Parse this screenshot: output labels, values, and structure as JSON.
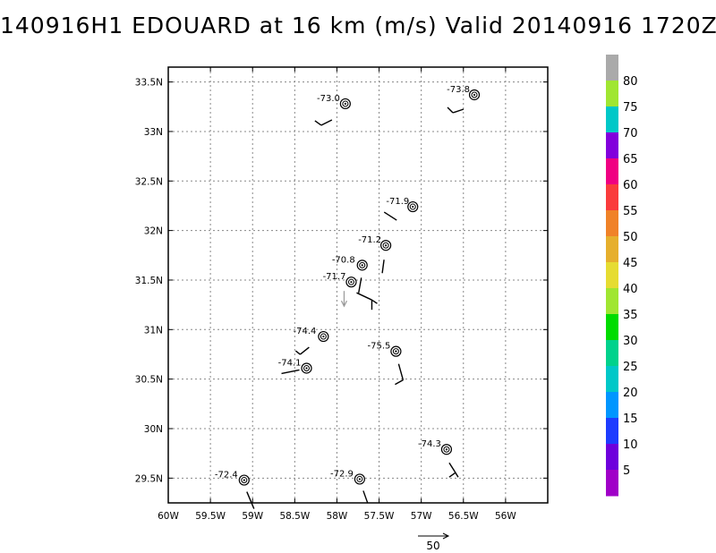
{
  "chart_data": {
    "type": "scatter",
    "title": "140916H1 EDOUARD at 16 km (m/s) Valid 20140916 1720Z",
    "xlim": [
      -60.0,
      -55.5
    ],
    "ylim": [
      29.25,
      33.65
    ],
    "x_ticks": [
      -60.0,
      -59.5,
      -59.0,
      -58.5,
      -58.0,
      -57.5,
      -57.0,
      -56.5,
      -56.0
    ],
    "x_tick_labels": [
      "60W",
      "59.5W",
      "59W",
      "58.5W",
      "58W",
      "57.5W",
      "57W",
      "56.5W",
      "56W"
    ],
    "y_ticks": [
      29.5,
      30.0,
      30.5,
      31.0,
      31.5,
      32.0,
      32.5,
      33.0,
      33.5
    ],
    "y_tick_labels": [
      "29.5N",
      "30N",
      "30.5N",
      "31N",
      "31.5N",
      "32N",
      "32.5N",
      "33N",
      "33.5N"
    ],
    "grid": true,
    "observations": [
      {
        "label": "-73.0",
        "lon": -57.9,
        "lat": 33.28
      },
      {
        "label": "-73.8",
        "lon": -56.37,
        "lat": 33.37
      },
      {
        "label": "-71.9",
        "lon": -57.1,
        "lat": 32.24
      },
      {
        "label": "-71.2",
        "lon": -57.42,
        "lat": 31.85
      },
      {
        "label": "-70.8",
        "lon": -57.7,
        "lat": 31.65
      },
      {
        "label": "-71.7",
        "lon": -57.83,
        "lat": 31.48
      },
      {
        "label": "-74.4",
        "lon": -58.16,
        "lat": 30.93
      },
      {
        "label": "-75.5",
        "lon": -57.3,
        "lat": 30.78
      },
      {
        "label": "-74.1",
        "lon": -58.36,
        "lat": 30.61
      },
      {
        "label": "-74.3",
        "lon": -56.7,
        "lat": 29.79
      },
      {
        "label": "-72.4",
        "lon": -59.1,
        "lat": 29.48
      },
      {
        "label": "-72.9",
        "lon": -57.73,
        "lat": 29.49
      }
    ],
    "reference_vector": {
      "label": "50"
    },
    "colorbar": {
      "labels": [
        "5",
        "10",
        "15",
        "20",
        "25",
        "30",
        "35",
        "40",
        "45",
        "50",
        "55",
        "60",
        "65",
        "70",
        "75",
        "80"
      ],
      "colors": [
        "#a000c8",
        "#6e00dc",
        "#1e3cff",
        "#0096ff",
        "#00c8c8",
        "#00d28c",
        "#00dc00",
        "#a0e632",
        "#e6dc32",
        "#e6af2d",
        "#f08228",
        "#fa3c3c",
        "#f00082",
        "#8200dc",
        "#00c8c8",
        "#a0e632",
        "#aaaaaa"
      ]
    }
  }
}
